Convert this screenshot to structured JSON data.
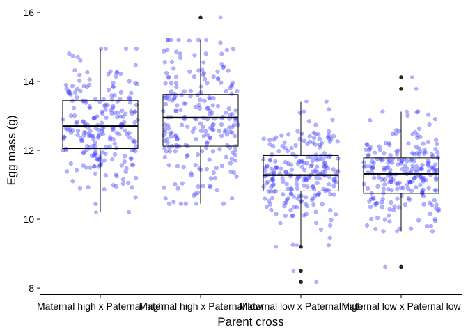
{
  "chart_data": {
    "type": "box",
    "title": "",
    "xlabel": "Parent cross",
    "ylabel": "Egg mass (g)",
    "ylim": [
      7.8,
      16.2
    ],
    "y_ticks": [
      8,
      10,
      12,
      14,
      16
    ],
    "grid": false,
    "legend": "none",
    "point_color": "#3b3bff",
    "outlier_color": "#222222",
    "box_color": "#000000",
    "categories": [
      "Maternal high x Paternal high",
      "Maternal high x Paternal low",
      "Maternal low x Paternal high",
      "Maternal low x Paternal low"
    ],
    "boxes": [
      {
        "category": "Maternal high x Paternal high",
        "q1": 12.05,
        "median": 12.7,
        "q3": 13.45,
        "whisker_low": 10.2,
        "whisker_high": 14.95,
        "outliers": [],
        "n_points": 230,
        "point_min": 10.2,
        "point_max": 14.95
      },
      {
        "category": "Maternal high x Paternal low",
        "q1": 12.12,
        "median": 12.95,
        "q3": 13.62,
        "whisker_low": 10.45,
        "whisker_high": 15.2,
        "outliers": [
          15.85
        ],
        "n_points": 230,
        "point_min": 10.45,
        "point_max": 15.85
      },
      {
        "category": "Maternal low x Paternal high",
        "q1": 10.82,
        "median": 11.28,
        "q3": 11.85,
        "whisker_low": 9.25,
        "whisker_high": 13.42,
        "outliers": [
          9.2,
          8.5,
          8.18
        ],
        "n_points": 230,
        "point_min": 8.18,
        "point_max": 13.42
      },
      {
        "category": "Maternal low x Paternal low",
        "q1": 10.75,
        "median": 11.32,
        "q3": 11.78,
        "whisker_low": 9.65,
        "whisker_high": 13.12,
        "outliers": [
          8.62,
          13.78,
          14.12
        ],
        "n_points": 230,
        "point_min": 8.62,
        "point_max": 14.12
      }
    ]
  }
}
